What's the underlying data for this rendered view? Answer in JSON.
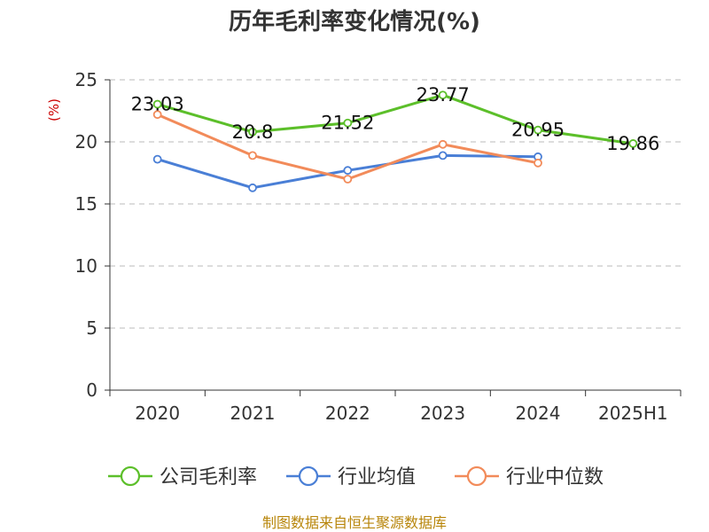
{
  "chart_data": {
    "type": "line",
    "title": "历年毛利率变化情况(%)",
    "ylabel": "(%)",
    "xlabel": "",
    "categories": [
      "2020",
      "2021",
      "2022",
      "2023",
      "2024",
      "2025H1"
    ],
    "ylim": [
      0,
      25
    ],
    "yticks": [
      0,
      5,
      10,
      15,
      20,
      25
    ],
    "grid": true,
    "legend_position": "bottom",
    "series": [
      {
        "name": "公司毛利率",
        "color": "#5cbf2a",
        "values": [
          23.03,
          20.8,
          21.52,
          23.77,
          20.95,
          19.86
        ],
        "labels": [
          "23.03",
          "20.8",
          "21.52",
          "23.77",
          "20.95",
          "19.86"
        ]
      },
      {
        "name": "行业均值",
        "color": "#4a7fd6",
        "values": [
          18.6,
          16.3,
          17.7,
          18.9,
          18.8,
          null
        ]
      },
      {
        "name": "行业中位数",
        "color": "#f28b5a",
        "values": [
          22.2,
          18.9,
          17.0,
          19.8,
          18.3,
          null
        ]
      }
    ]
  },
  "source_note": "制图数据来自恒生聚源数据库"
}
